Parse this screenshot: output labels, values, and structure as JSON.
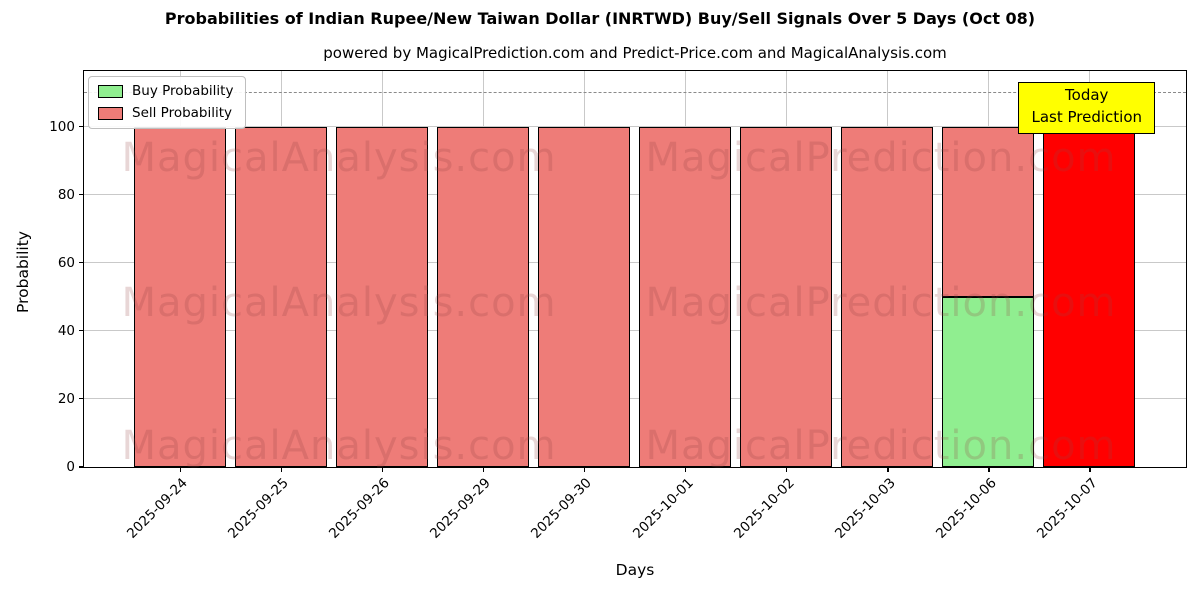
{
  "header": {
    "title": "Probabilities of Indian Rupee/New Taiwan Dollar (INRTWD) Buy/Sell Signals Over 5 Days (Oct 08)",
    "subtitle": "powered by MagicalPrediction.com and Predict-Price.com and MagicalAnalysis.com"
  },
  "axes": {
    "x_label": "Days",
    "y_label": "Probability",
    "y_ticks": [
      0,
      20,
      40,
      60,
      80,
      100
    ]
  },
  "legend": {
    "items": [
      {
        "key": "buy",
        "label": "Buy Probability",
        "color": "#90EE90"
      },
      {
        "key": "sell",
        "label": "Sell Probability",
        "color": "#EE7C78"
      }
    ]
  },
  "annotation": {
    "line1": "Today",
    "line2": "Last Prediction",
    "bg_color": "#FFFF00"
  },
  "watermarks": {
    "left": "MagicalAnalysis.com",
    "right": "MagicalPrediction.com"
  },
  "colors": {
    "buy": "#90EE90",
    "sell": "#EE7C78",
    "today_sell": "#FF0000",
    "grid": "#c9c9c9",
    "dashed_line": "#8a8a8a",
    "annotation_bg": "#FFFF00"
  },
  "chart_data": {
    "type": "bar",
    "stacked": true,
    "title": "Probabilities of Indian Rupee/New Taiwan Dollar (INRTWD) Buy/Sell Signals Over 5 Days (Oct 08)",
    "xlabel": "Days",
    "ylabel": "Probability",
    "categories": [
      "2025-09-24",
      "2025-09-25",
      "2025-09-26",
      "2025-09-29",
      "2025-09-30",
      "2025-10-01",
      "2025-10-02",
      "2025-10-03",
      "2025-10-06",
      "2025-10-07"
    ],
    "series": [
      {
        "name": "Buy Probability",
        "key": "buy",
        "color": "#90EE90",
        "values": [
          0,
          0,
          0,
          0,
          0,
          0,
          0,
          0,
          50,
          0
        ]
      },
      {
        "name": "Sell Probability",
        "key": "sell",
        "color": "#EE7C78",
        "values": [
          100,
          100,
          100,
          100,
          100,
          100,
          100,
          100,
          50,
          0
        ]
      },
      {
        "name": "Today Sell (Last Prediction)",
        "key": "today_sell",
        "color": "#FF0000",
        "values": [
          0,
          0,
          0,
          0,
          0,
          0,
          0,
          0,
          0,
          100
        ]
      }
    ],
    "ylim": [
      0,
      117
    ],
    "dashed_line_y": 110,
    "grid": true,
    "legend_position": "upper left"
  }
}
